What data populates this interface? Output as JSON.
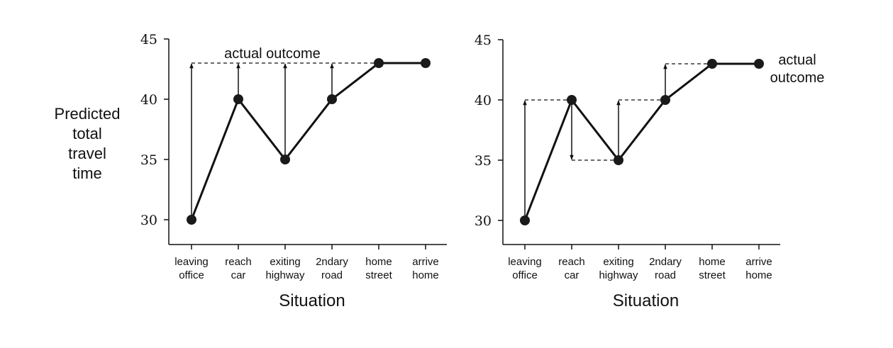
{
  "chart_data": [
    {
      "type": "line",
      "xlabel": "Situation",
      "ylabel": [
        "Predicted",
        "total",
        "travel",
        "time"
      ],
      "ylim": [
        28,
        45
      ],
      "yticks": [
        30,
        35,
        40,
        45
      ],
      "categories": [
        [
          "leaving",
          "office"
        ],
        [
          "reach",
          "car"
        ],
        [
          "exiting",
          "highway"
        ],
        [
          "2ndary",
          "road"
        ],
        [
          "home",
          "street"
        ],
        [
          "arrive",
          "home"
        ]
      ],
      "series": [
        {
          "values": [
            30,
            40,
            35,
            40,
            43,
            43
          ]
        }
      ],
      "actual_outcome": 43,
      "annotation": [
        "actual outcome"
      ],
      "arrows": [
        {
          "from_index": 0,
          "to_value": 43
        },
        {
          "from_index": 1,
          "to_value": 43
        },
        {
          "from_index": 2,
          "to_value": 43
        },
        {
          "from_index": 3,
          "to_value": 43
        }
      ]
    },
    {
      "type": "line",
      "xlabel": "Situation",
      "ylabel": [],
      "ylim": [
        28,
        45
      ],
      "yticks": [
        30,
        35,
        40,
        45
      ],
      "categories": [
        [
          "leaving",
          "office"
        ],
        [
          "reach",
          "car"
        ],
        [
          "exiting",
          "highway"
        ],
        [
          "2ndary",
          "road"
        ],
        [
          "home",
          "street"
        ],
        [
          "arrive",
          "home"
        ]
      ],
      "series": [
        {
          "values": [
            30,
            40,
            35,
            40,
            43,
            43
          ]
        }
      ],
      "actual_outcome": 43,
      "annotation": [
        "actual",
        "outcome"
      ],
      "arrows": [
        {
          "from_index": 0,
          "to_value": 40
        },
        {
          "from_index": 1,
          "to_value": 35
        },
        {
          "from_index": 2,
          "to_value": 40
        },
        {
          "from_index": 3,
          "to_value": 43
        }
      ]
    }
  ]
}
